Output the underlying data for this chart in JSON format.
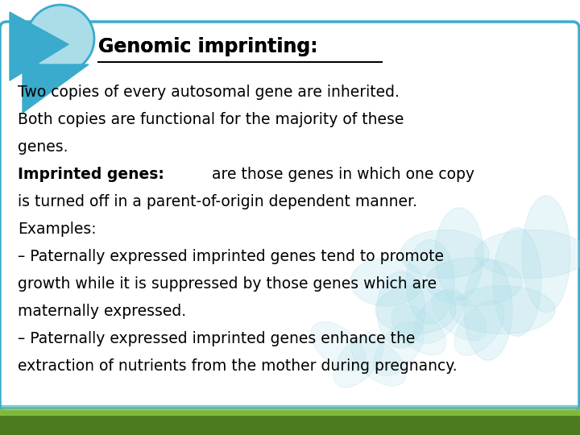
{
  "title": "Genomic imprinting:",
  "background_color": "#ffffff",
  "box_color": "#ffffff",
  "box_border_color": "#3aabcc",
  "bottom_bar_color_top": "#8dc63f",
  "bottom_bar_color_bot": "#4a7c1f",
  "triangle_color": "#3aabcc",
  "circle_color": "#aadde8",
  "circle_outline": "#3aabcc",
  "text_color": "#000000",
  "title_fontsize": 17,
  "body_fontsize": 13.5,
  "lines": [
    {
      "bold_part": "",
      "normal_part": "Two copies of every autosomal gene are inherited."
    },
    {
      "bold_part": "",
      "normal_part": "Both copies are functional for the majority of these"
    },
    {
      "bold_part": "",
      "normal_part": "genes."
    },
    {
      "bold_part": "Imprinted genes:",
      "normal_part": " are those genes in which one copy"
    },
    {
      "bold_part": "",
      "normal_part": "is turned off in a parent-of-origin dependent manner."
    },
    {
      "bold_part": "",
      "normal_part": "Examples:"
    },
    {
      "bold_part": "",
      "normal_part": "– Paternally expressed imprinted genes tend to promote"
    },
    {
      "bold_part": "",
      "normal_part": "growth while it is suppressed by those genes which are"
    },
    {
      "bold_part": "",
      "normal_part": "maternally expressed."
    },
    {
      "bold_part": "",
      "normal_part": "– Paternally expressed imprinted genes enhance the"
    },
    {
      "bold_part": "",
      "normal_part": "extraction of nutrients from the mother during pregnancy."
    }
  ]
}
